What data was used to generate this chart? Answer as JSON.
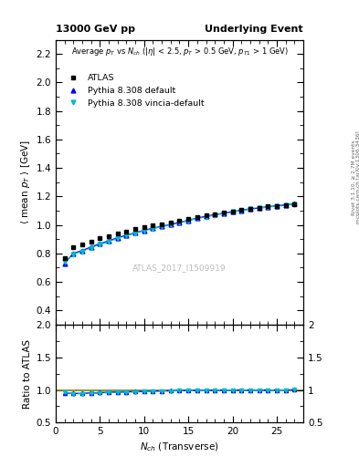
{
  "title_left": "13000 GeV pp",
  "title_right": "Underlying Event",
  "watermark": "ATLAS_2017_I1509919",
  "ylabel_main": "<mean p_T> [GeV]",
  "ylabel_ratio": "Ratio to ATLAS",
  "xlabel": "N_{ch} (Transverse)",
  "ylim_main": [
    0.3,
    2.3
  ],
  "ylim_ratio": [
    0.5,
    2.0
  ],
  "yticks_main": [
    0.4,
    0.6,
    0.8,
    1.0,
    1.2,
    1.4,
    1.6,
    1.8,
    2.0,
    2.2
  ],
  "yticks_ratio": [
    0.5,
    1.0,
    1.5,
    2.0
  ],
  "xlim": [
    0,
    28
  ],
  "xticks": [
    0,
    5,
    10,
    15,
    20,
    25
  ],
  "atlas_x": [
    1,
    2,
    3,
    4,
    5,
    6,
    7,
    8,
    9,
    10,
    11,
    12,
    13,
    14,
    15,
    16,
    17,
    18,
    19,
    20,
    21,
    22,
    23,
    24,
    25,
    26,
    27
  ],
  "atlas_y": [
    0.765,
    0.845,
    0.865,
    0.885,
    0.905,
    0.92,
    0.94,
    0.955,
    0.97,
    0.985,
    0.995,
    1.005,
    1.015,
    1.028,
    1.04,
    1.055,
    1.065,
    1.075,
    1.085,
    1.095,
    1.105,
    1.115,
    1.12,
    1.13,
    1.135,
    1.14,
    1.145
  ],
  "pythia_default_x": [
    1,
    2,
    3,
    4,
    5,
    6,
    7,
    8,
    9,
    10,
    11,
    12,
    13,
    14,
    15,
    16,
    17,
    18,
    19,
    20,
    21,
    22,
    23,
    24,
    25,
    26,
    27
  ],
  "pythia_default_y": [
    0.73,
    0.8,
    0.82,
    0.845,
    0.868,
    0.888,
    0.91,
    0.928,
    0.945,
    0.962,
    0.977,
    0.99,
    1.003,
    1.018,
    1.032,
    1.048,
    1.06,
    1.072,
    1.083,
    1.093,
    1.103,
    1.113,
    1.119,
    1.128,
    1.134,
    1.14,
    1.148
  ],
  "pythia_vincia_x": [
    1,
    2,
    3,
    4,
    5,
    6,
    7,
    8,
    9,
    10,
    11,
    12,
    13,
    14,
    15,
    16,
    17,
    18,
    19,
    20,
    21,
    22,
    23,
    24,
    25,
    26,
    27
  ],
  "pythia_vincia_y": [
    0.74,
    0.795,
    0.815,
    0.84,
    0.862,
    0.883,
    0.905,
    0.924,
    0.942,
    0.959,
    0.975,
    0.988,
    1.001,
    1.016,
    1.03,
    1.046,
    1.058,
    1.07,
    1.081,
    1.091,
    1.101,
    1.111,
    1.117,
    1.126,
    1.132,
    1.138,
    1.146
  ],
  "color_atlas": "#000000",
  "color_pythia_default": "#0000ff",
  "color_pythia_vincia": "#00bbcc",
  "color_ratio_line": "#808000",
  "bg_color": "#ffffff",
  "right_text1": "Rivet 3.1.10, ≥ 2.7M events",
  "right_text2": "mcplots.cern.ch [arXiv:1306.3436]"
}
